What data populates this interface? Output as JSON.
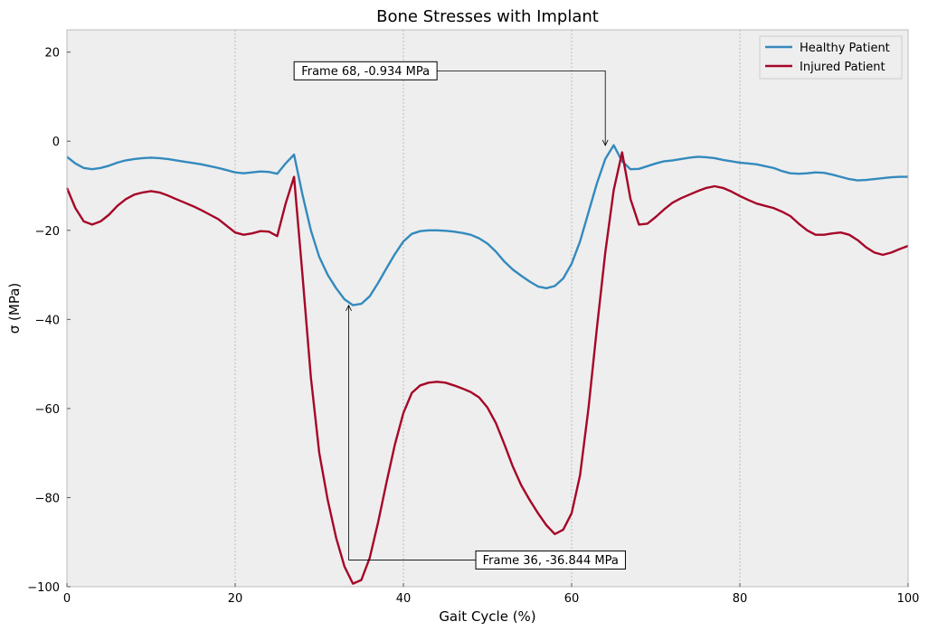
{
  "chart_data": {
    "type": "line",
    "title": "Bone Stresses with Implant",
    "xlabel": "Gait Cycle (%)",
    "ylabel": "σ (MPa)",
    "xlim": [
      0,
      100
    ],
    "ylim": [
      -100,
      25
    ],
    "x_ticks": [
      0,
      20,
      40,
      60,
      80,
      100
    ],
    "y_ticks": [
      20,
      0,
      -20,
      -40,
      -60,
      -80,
      -100
    ],
    "y_tick_labels": [
      "20",
      "0",
      "−20",
      "−40",
      "−60",
      "−80",
      "−100"
    ],
    "grid": "vertical dashed",
    "legend_position": "top-right",
    "series": [
      {
        "name": "Healthy Patient",
        "color": "#348abd",
        "points": [
          [
            0,
            -3.5
          ],
          [
            1,
            -5
          ],
          [
            2,
            -6
          ],
          [
            3,
            -6.3
          ],
          [
            4,
            -6
          ],
          [
            5,
            -5.5
          ],
          [
            6,
            -4.8
          ],
          [
            7,
            -4.3
          ],
          [
            8,
            -4
          ],
          [
            9,
            -3.8
          ],
          [
            10,
            -3.7
          ],
          [
            11,
            -3.8
          ],
          [
            12,
            -4
          ],
          [
            13,
            -4.3
          ],
          [
            14,
            -4.6
          ],
          [
            15,
            -4.9
          ],
          [
            16,
            -5.2
          ],
          [
            17,
            -5.6
          ],
          [
            18,
            -6
          ],
          [
            19,
            -6.5
          ],
          [
            20,
            -7
          ],
          [
            21,
            -7.2
          ],
          [
            22,
            -7
          ],
          [
            23,
            -6.8
          ],
          [
            24,
            -6.9
          ],
          [
            25,
            -7.3
          ],
          [
            26,
            -5
          ],
          [
            27,
            -3
          ],
          [
            28,
            -12
          ],
          [
            29,
            -20
          ],
          [
            30,
            -26
          ],
          [
            31,
            -30
          ],
          [
            32,
            -33
          ],
          [
            33,
            -35.5
          ],
          [
            34,
            -36.8
          ],
          [
            35,
            -36.5
          ],
          [
            36,
            -34.8
          ],
          [
            37,
            -31.8
          ],
          [
            38,
            -28.5
          ],
          [
            39,
            -25.3
          ],
          [
            40,
            -22.5
          ],
          [
            41,
            -20.8
          ],
          [
            42,
            -20.2
          ],
          [
            43,
            -20
          ],
          [
            44,
            -20
          ],
          [
            45,
            -20.1
          ],
          [
            46,
            -20.3
          ],
          [
            47,
            -20.6
          ],
          [
            48,
            -21
          ],
          [
            49,
            -21.8
          ],
          [
            50,
            -23
          ],
          [
            51,
            -24.8
          ],
          [
            52,
            -27
          ],
          [
            53,
            -28.8
          ],
          [
            54,
            -30.2
          ],
          [
            55,
            -31.5
          ],
          [
            56,
            -32.6
          ],
          [
            57,
            -33
          ],
          [
            58,
            -32.5
          ],
          [
            59,
            -30.8
          ],
          [
            60,
            -27.5
          ],
          [
            61,
            -22.5
          ],
          [
            62,
            -16
          ],
          [
            63,
            -9.5
          ],
          [
            64,
            -4
          ],
          [
            65,
            -0.9
          ],
          [
            66,
            -4.5
          ],
          [
            67,
            -6.3
          ],
          [
            68,
            -6.2
          ],
          [
            69,
            -5.6
          ],
          [
            70,
            -5
          ],
          [
            71,
            -4.5
          ],
          [
            72,
            -4.3
          ],
          [
            73,
            -4
          ],
          [
            74,
            -3.7
          ],
          [
            75,
            -3.5
          ],
          [
            76,
            -3.6
          ],
          [
            77,
            -3.8
          ],
          [
            78,
            -4.2
          ],
          [
            79,
            -4.5
          ],
          [
            80,
            -4.8
          ],
          [
            81,
            -5
          ],
          [
            82,
            -5.2
          ],
          [
            83,
            -5.6
          ],
          [
            84,
            -6
          ],
          [
            85,
            -6.7
          ],
          [
            86,
            -7.2
          ],
          [
            87,
            -7.3
          ],
          [
            88,
            -7.2
          ],
          [
            89,
            -7
          ],
          [
            90,
            -7.1
          ],
          [
            91,
            -7.5
          ],
          [
            92,
            -8
          ],
          [
            93,
            -8.5
          ],
          [
            94,
            -8.8
          ],
          [
            95,
            -8.7
          ],
          [
            96,
            -8.5
          ],
          [
            97,
            -8.3
          ],
          [
            98,
            -8.1
          ],
          [
            99,
            -8
          ],
          [
            100,
            -8
          ]
        ]
      },
      {
        "name": "Injured Patient",
        "color": "#a60628",
        "points": [
          [
            0,
            -10.5
          ],
          [
            1,
            -15
          ],
          [
            2,
            -18
          ],
          [
            3,
            -18.7
          ],
          [
            4,
            -18
          ],
          [
            5,
            -16.5
          ],
          [
            6,
            -14.5
          ],
          [
            7,
            -13
          ],
          [
            8,
            -12
          ],
          [
            9,
            -11.5
          ],
          [
            10,
            -11.2
          ],
          [
            11,
            -11.5
          ],
          [
            12,
            -12.2
          ],
          [
            13,
            -13
          ],
          [
            14,
            -13.8
          ],
          [
            15,
            -14.6
          ],
          [
            16,
            -15.5
          ],
          [
            17,
            -16.5
          ],
          [
            18,
            -17.5
          ],
          [
            19,
            -19
          ],
          [
            20,
            -20.5
          ],
          [
            21,
            -21
          ],
          [
            22,
            -20.7
          ],
          [
            23,
            -20.2
          ],
          [
            24,
            -20.3
          ],
          [
            25,
            -21.3
          ],
          [
            26,
            -14
          ],
          [
            27,
            -8
          ],
          [
            28,
            -30
          ],
          [
            29,
            -53
          ],
          [
            30,
            -70
          ],
          [
            31,
            -80.5
          ],
          [
            32,
            -89
          ],
          [
            33,
            -95.5
          ],
          [
            34,
            -99.3
          ],
          [
            35,
            -98.5
          ],
          [
            36,
            -93.5
          ],
          [
            37,
            -85.5
          ],
          [
            38,
            -76.5
          ],
          [
            39,
            -68
          ],
          [
            40,
            -61
          ],
          [
            41,
            -56.5
          ],
          [
            42,
            -54.8
          ],
          [
            43,
            -54.2
          ],
          [
            44,
            -54
          ],
          [
            45,
            -54.2
          ],
          [
            46,
            -54.8
          ],
          [
            47,
            -55.5
          ],
          [
            48,
            -56.3
          ],
          [
            49,
            -57.5
          ],
          [
            50,
            -59.8
          ],
          [
            51,
            -63.3
          ],
          [
            52,
            -68
          ],
          [
            53,
            -73
          ],
          [
            54,
            -77.2
          ],
          [
            55,
            -80.5
          ],
          [
            56,
            -83.5
          ],
          [
            57,
            -86.2
          ],
          [
            58,
            -88.2
          ],
          [
            59,
            -87.2
          ],
          [
            60,
            -83.5
          ],
          [
            61,
            -75
          ],
          [
            62,
            -60
          ],
          [
            63,
            -42
          ],
          [
            64,
            -25
          ],
          [
            65,
            -11
          ],
          [
            66,
            -2.5
          ],
          [
            67,
            -13
          ],
          [
            68,
            -18.7
          ],
          [
            69,
            -18.5
          ],
          [
            70,
            -17
          ],
          [
            71,
            -15.3
          ],
          [
            72,
            -13.8
          ],
          [
            73,
            -12.8
          ],
          [
            74,
            -12
          ],
          [
            75,
            -11.2
          ],
          [
            76,
            -10.5
          ],
          [
            77,
            -10.1
          ],
          [
            78,
            -10.5
          ],
          [
            79,
            -11.3
          ],
          [
            80,
            -12.3
          ],
          [
            81,
            -13.2
          ],
          [
            82,
            -14
          ],
          [
            83,
            -14.5
          ],
          [
            84,
            -15
          ],
          [
            85,
            -15.8
          ],
          [
            86,
            -16.8
          ],
          [
            87,
            -18.5
          ],
          [
            88,
            -20
          ],
          [
            89,
            -21
          ],
          [
            90,
            -21
          ],
          [
            91,
            -20.7
          ],
          [
            92,
            -20.5
          ],
          [
            93,
            -21
          ],
          [
            94,
            -22.2
          ],
          [
            95,
            -23.8
          ],
          [
            96,
            -25
          ],
          [
            97,
            -25.5
          ],
          [
            98,
            -25
          ],
          [
            99,
            -24.2
          ],
          [
            100,
            -23.5
          ]
        ]
      }
    ],
    "annotations": [
      {
        "text": "Frame 68, -0.934 MPa",
        "point": [
          64,
          -0.934
        ],
        "box_at": [
          35.5,
          15.8
        ]
      },
      {
        "text": "Frame 36, -36.844 MPa",
        "point": [
          33.5,
          -36.844
        ],
        "box_at": [
          57.5,
          -94
        ]
      }
    ]
  }
}
